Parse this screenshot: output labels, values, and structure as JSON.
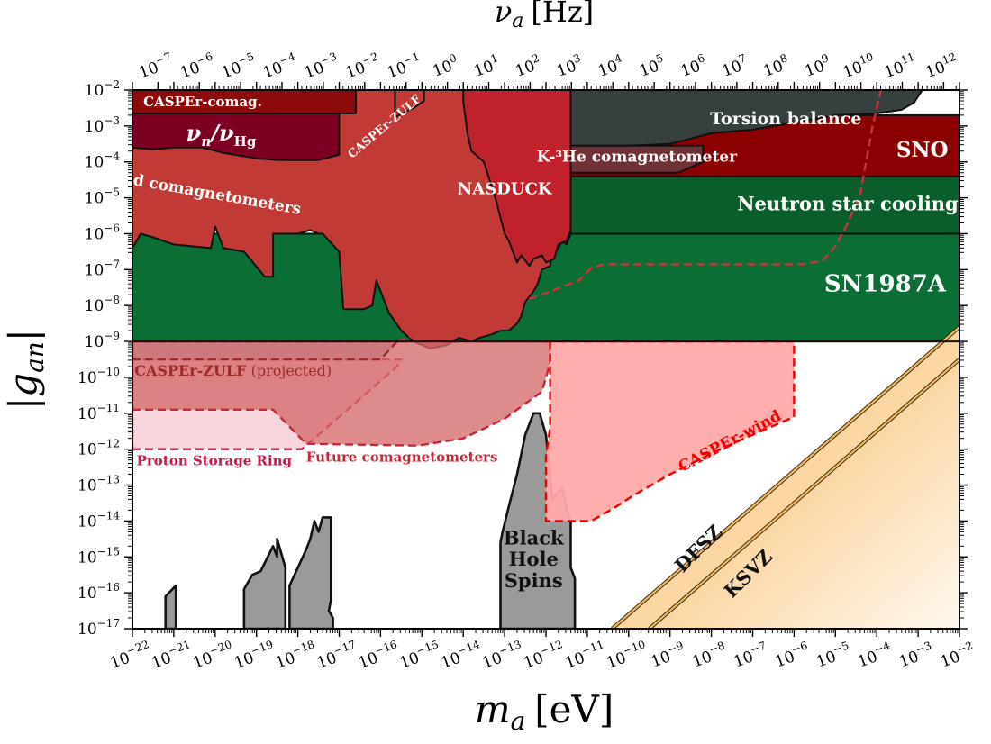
{
  "chart_data": {
    "type": "area",
    "title": "",
    "xlabel_base": "m",
    "xlabel_sub": "a",
    "xlabel_unit": "[eV]",
    "ylabel_base": "|g",
    "ylabel_sub": "an",
    "ylabel_end": "|",
    "top_xlabel_base": "ν",
    "top_xlabel_sub": "a",
    "top_xlabel_unit": "[Hz]",
    "x_scale": "log",
    "y_scale": "log",
    "xlim": [
      1e-22,
      0.01
    ],
    "ylim": [
      1e-17,
      0.01
    ],
    "hz_per_ev": 241800000000000.0,
    "x_tick_exponents": [
      -22,
      -21,
      -20,
      -19,
      -18,
      -17,
      -16,
      -15,
      -14,
      -13,
      -12,
      -11,
      -10,
      -9,
      -8,
      -7,
      -6,
      -5,
      -4,
      -3,
      -2
    ],
    "y_tick_exponents": [
      -17,
      -16,
      -15,
      -14,
      -13,
      -12,
      -11,
      -10,
      -9,
      -8,
      -7,
      -6,
      -5,
      -4,
      -3,
      -2
    ],
    "top_tick_exponents": [
      -7,
      -6,
      -5,
      -4,
      -3,
      -2,
      -1,
      0,
      1,
      2,
      3,
      4,
      5,
      6,
      7,
      8,
      9,
      10,
      11,
      12
    ],
    "colors": {
      "sn1987a": "#0b6e35",
      "neutron_star": "#0a5e2c",
      "sno": "#8b0000",
      "torsion": "#36403f",
      "khe": "#6e3236",
      "nasduck": "#c1212b",
      "old_comag": "#c13a36",
      "nu_hg": "#7d0022",
      "caspher_comag": "#8e0b0b",
      "caspher_zulf_exp": "#8a1e2e",
      "bhs": "#9a9a9a",
      "caspher_wind": "#ffaaaa",
      "proton_ring": "#f6c9d3",
      "axion_band": "#fbcf8e"
    },
    "regions": [
      {
        "name": "SN1987A",
        "label": "SN1987A",
        "kind": "constraint",
        "points": [
          [
            -22,
            -9
          ],
          [
            -2,
            -9
          ],
          [
            -2,
            -6
          ],
          [
            -22,
            -6
          ]
        ]
      },
      {
        "name": "Neutron star cooling",
        "label": "Neutron star cooling",
        "kind": "constraint",
        "points": [
          [
            -11.4,
            -6
          ],
          [
            -2,
            -6
          ],
          [
            -2,
            -4.4
          ],
          [
            -11.4,
            -4.4
          ]
        ]
      },
      {
        "name": "SNO",
        "label": "SNO",
        "kind": "constraint",
        "points": [
          [
            -11.4,
            -4.4
          ],
          [
            -2,
            -4.4
          ],
          [
            -2,
            -2.7
          ],
          [
            -11.4,
            -2.7
          ]
        ]
      },
      {
        "name": "Torsion balance",
        "label": "Torsion balance",
        "kind": "constraint",
        "points": [
          [
            -11.4,
            -2
          ],
          [
            -2.9,
            -2
          ],
          [
            -3.1,
            -2.35
          ],
          [
            -3.4,
            -2.55
          ],
          [
            -4,
            -2.65
          ],
          [
            -5,
            -2.7
          ],
          [
            -6,
            -2.9
          ],
          [
            -7,
            -3.1
          ],
          [
            -8,
            -3.2
          ],
          [
            -9,
            -3.5
          ],
          [
            -10,
            -3.55
          ],
          [
            -11.4,
            -3.55
          ]
        ]
      },
      {
        "name": "K-3He comagnetometer",
        "label": "K-³He comagnetometer",
        "kind": "constraint",
        "points": [
          [
            -11.4,
            -3.55
          ],
          [
            -8.2,
            -3.55
          ],
          [
            -8.2,
            -4.0
          ],
          [
            -8.8,
            -4.3
          ],
          [
            -11.4,
            -4.3
          ]
        ]
      },
      {
        "name": "Old comagnetometers",
        "label": "Old comagnetometers",
        "kind": "constraint",
        "points": [
          [
            -22,
            -2
          ],
          [
            -11.4,
            -2
          ],
          [
            -11.4,
            -6.0
          ],
          [
            -11.5,
            -6.3
          ],
          [
            -11.6,
            -6.2
          ],
          [
            -11.7,
            -6.4
          ],
          [
            -11.8,
            -6.3
          ],
          [
            -11.9,
            -6.9
          ],
          [
            -12.1,
            -7.0
          ],
          [
            -12.2,
            -7.4
          ],
          [
            -12.3,
            -7.6
          ],
          [
            -12.5,
            -7.9
          ],
          [
            -12.6,
            -8.3
          ],
          [
            -12.7,
            -8.5
          ],
          [
            -12.9,
            -8.7
          ],
          [
            -13.1,
            -8.7
          ],
          [
            -13.3,
            -8.8
          ],
          [
            -13.6,
            -8.9
          ],
          [
            -13.8,
            -9.0
          ],
          [
            -14.1,
            -8.9
          ],
          [
            -14.4,
            -9.1
          ],
          [
            -14.8,
            -9.2
          ],
          [
            -15.2,
            -9.0
          ],
          [
            -15.5,
            -8.7
          ],
          [
            -15.8,
            -8.2
          ],
          [
            -16.0,
            -7.6
          ],
          [
            -16.1,
            -7.3
          ],
          [
            -16.2,
            -8.0
          ],
          [
            -16.4,
            -8.1
          ],
          [
            -16.9,
            -8.1
          ],
          [
            -17.0,
            -6.5
          ],
          [
            -17.4,
            -6.0
          ],
          [
            -17.5,
            -6.0
          ],
          [
            -17.7,
            -5.9
          ],
          [
            -18.0,
            -6.0
          ],
          [
            -18.6,
            -6.0
          ],
          [
            -18.6,
            -7.2
          ],
          [
            -18.8,
            -7.2
          ],
          [
            -19.3,
            -6.5
          ],
          [
            -19.8,
            -6.4
          ],
          [
            -20.0,
            -5.8
          ],
          [
            -20.1,
            -6.4
          ],
          [
            -21.0,
            -6.3
          ],
          [
            -21.5,
            -6.1
          ],
          [
            -21.8,
            -6.0
          ],
          [
            -22,
            -6.4
          ]
        ]
      },
      {
        "name": "nu_n/nu_Hg",
        "label": "",
        "kind": "constraint",
        "points": [
          [
            -22,
            -2.55
          ],
          [
            -17.0,
            -2.55
          ],
          [
            -17.0,
            -3.8
          ],
          [
            -17.5,
            -3.95
          ],
          [
            -18.5,
            -3.95
          ],
          [
            -19.0,
            -3.9
          ],
          [
            -19.8,
            -3.75
          ],
          [
            -20.3,
            -3.6
          ],
          [
            -21.0,
            -3.6
          ],
          [
            -21.5,
            -3.65
          ],
          [
            -22,
            -3.6
          ]
        ]
      },
      {
        "name": "CASPEr-comag.",
        "label": "CASPEr-comag.",
        "kind": "constraint",
        "points": [
          [
            -22,
            -2
          ],
          [
            -16.6,
            -2
          ],
          [
            -16.6,
            -2.65
          ],
          [
            -22,
            -2.65
          ]
        ]
      },
      {
        "name": "CASPEr-ZULF exp",
        "label": "CASPEr-ZULF",
        "kind": "constraint",
        "points": [
          [
            -15.65,
            -2.0
          ],
          [
            -14.95,
            -2.0
          ],
          [
            -14.95,
            -2.3
          ],
          [
            -15.2,
            -2.5
          ],
          [
            -15.65,
            -2.75
          ]
        ]
      },
      {
        "name": "NASDUCK",
        "label": "NASDUCK",
        "kind": "constraint",
        "points": [
          [
            -14.0,
            -2.0
          ],
          [
            -11.4,
            -2.0
          ],
          [
            -11.4,
            -5.9
          ],
          [
            -11.5,
            -6.2
          ],
          [
            -11.7,
            -6.3
          ],
          [
            -11.8,
            -6.7
          ],
          [
            -12.0,
            -6.8
          ],
          [
            -12.1,
            -6.6
          ],
          [
            -12.3,
            -6.7
          ],
          [
            -12.4,
            -6.9
          ],
          [
            -12.6,
            -6.6
          ],
          [
            -12.7,
            -6.8
          ],
          [
            -12.8,
            -6.5
          ],
          [
            -12.9,
            -6.2
          ],
          [
            -13.0,
            -6.0
          ],
          [
            -13.2,
            -5.1
          ],
          [
            -13.5,
            -4.0
          ],
          [
            -13.8,
            -3.7
          ],
          [
            -13.9,
            -3.2
          ],
          [
            -14.0,
            -2.3
          ]
        ]
      },
      {
        "name": "Black Hole Spins",
        "label": "Black Hole Spins",
        "kind": "bhs",
        "points": [
          [
            -13.1,
            -17
          ],
          [
            -13.1,
            -14.6
          ],
          [
            -13.05,
            -14.3
          ],
          [
            -12.9,
            -13.6
          ],
          [
            -12.7,
            -12.7
          ],
          [
            -12.5,
            -11.6
          ],
          [
            -12.3,
            -11.0
          ],
          [
            -12.15,
            -11.0
          ],
          [
            -12.0,
            -11.6
          ],
          [
            -11.9,
            -12.7
          ],
          [
            -11.85,
            -13.4
          ],
          [
            -11.7,
            -13.2
          ],
          [
            -11.6,
            -13.1
          ],
          [
            -11.5,
            -13.7
          ],
          [
            -11.4,
            -14.0
          ],
          [
            -11.4,
            -15.3
          ],
          [
            -11.3,
            -15.6
          ],
          [
            -11.3,
            -17
          ]
        ]
      },
      {
        "name": "BHS small 1",
        "label": "",
        "kind": "bhs",
        "points": [
          [
            -21.2,
            -17
          ],
          [
            -21.2,
            -16.1
          ],
          [
            -20.95,
            -15.8
          ],
          [
            -20.95,
            -17
          ]
        ]
      },
      {
        "name": "BHS small 2",
        "label": "",
        "kind": "bhs",
        "points": [
          [
            -19.3,
            -17
          ],
          [
            -19.3,
            -15.9
          ],
          [
            -19.1,
            -15.5
          ],
          [
            -18.9,
            -15.4
          ],
          [
            -18.6,
            -14.7
          ],
          [
            -18.5,
            -15.0
          ],
          [
            -18.5,
            -14.5
          ],
          [
            -18.3,
            -15.3
          ],
          [
            -18.3,
            -17
          ]
        ]
      },
      {
        "name": "BHS small 3",
        "label": "",
        "kind": "bhs",
        "points": [
          [
            -18.2,
            -17
          ],
          [
            -18.2,
            -15.8
          ],
          [
            -18.0,
            -15.3
          ],
          [
            -17.8,
            -14.8
          ],
          [
            -17.7,
            -14.5
          ],
          [
            -17.6,
            -14.0
          ],
          [
            -17.5,
            -14.3
          ],
          [
            -17.4,
            -13.9
          ],
          [
            -17.2,
            -13.9
          ],
          [
            -17.2,
            -16.2
          ],
          [
            -17.25,
            -16.5
          ],
          [
            -17.15,
            -16.7
          ],
          [
            -17.15,
            -17
          ]
        ]
      }
    ],
    "projections": [
      {
        "name": "Proton Storage Ring",
        "label": "Proton Storage Ring",
        "fill": "#f6c9d3",
        "stroke": "#c91a49",
        "points": [
          [
            -22,
            -12
          ],
          [
            -17.9,
            -12
          ],
          [
            -17.6,
            -11.7
          ],
          [
            -17.3,
            -11.4
          ],
          [
            -17.0,
            -11.1
          ],
          [
            -16.1,
            -10.2
          ],
          [
            -15.6,
            -9.7
          ],
          [
            -15.5,
            -9.5
          ],
          [
            -22,
            -9.5
          ]
        ]
      },
      {
        "name": "Future comagnetometers",
        "label": "Future comagnetometers",
        "fill": "#d46a6a",
        "stroke": "#c6283a",
        "points": [
          [
            -22,
            -10.9
          ],
          [
            -18.6,
            -10.9
          ],
          [
            -17.8,
            -11.85
          ],
          [
            -15.1,
            -11.9
          ],
          [
            -14.0,
            -11.7
          ],
          [
            -13.0,
            -11.15
          ],
          [
            -12.1,
            -10.4
          ],
          [
            -11.9,
            -9.6
          ],
          [
            -11.9,
            -9.0
          ],
          [
            -22,
            -9.0
          ]
        ]
      },
      {
        "name": "CASPEr-ZULF (projected)",
        "label": "CASPEr-ZULF",
        "label_suffix": "(projected)",
        "fill": "#c8757a",
        "stroke": "#9e2929",
        "points": [
          [
            -22,
            -9.5
          ],
          [
            -16.0,
            -9.5
          ],
          [
            -15.6,
            -9.0
          ],
          [
            -22,
            -9.0
          ]
        ]
      },
      {
        "name": "CASPEr-wind",
        "label": "CASPEr-wind",
        "fill": "#ffaaaa",
        "stroke": "#f00000",
        "points": [
          [
            -12.0,
            -9.0
          ],
          [
            -6.0,
            -9.0
          ],
          [
            -6.0,
            -11.1
          ],
          [
            -7.6,
            -11.9
          ],
          [
            -9.0,
            -12.7
          ],
          [
            -9.9,
            -13.3
          ],
          [
            -10.3,
            -13.6
          ],
          [
            -10.9,
            -14.0
          ],
          [
            -12.0,
            -14.0
          ],
          [
            -12.0,
            -12.2
          ],
          [
            -11.9,
            -11.4
          ],
          [
            -11.9,
            -9.0
          ]
        ]
      }
    ],
    "future_line": {
      "name": "Future comagnetometers high-mass",
      "stroke": "#c9353b",
      "points": [
        [
          -15.6,
          -9.0
        ],
        [
          -15.0,
          -8.75
        ],
        [
          -14.0,
          -8.4
        ],
        [
          -13.0,
          -8.05
        ],
        [
          -12.0,
          -7.65
        ],
        [
          -11.2,
          -7.3
        ],
        [
          -10.9,
          -6.95
        ],
        [
          -10.6,
          -6.85
        ],
        [
          -9.5,
          -6.85
        ],
        [
          -8.5,
          -6.85
        ],
        [
          -6.6,
          -6.85
        ],
        [
          -5.8,
          -6.85
        ],
        [
          -5.3,
          -6.75
        ],
        [
          -5.0,
          -6.35
        ],
        [
          -4.7,
          -5.7
        ],
        [
          -4.4,
          -4.9
        ],
        [
          -4.1,
          -3.0
        ],
        [
          -3.9,
          -2.0
        ]
      ]
    },
    "axion_bands": [
      {
        "name": "DFSZ",
        "label": "DFSZ",
        "ref_mass_exp": -10.4,
        "ref_coupling_exp": -17.0,
        "slope": 1.0
      },
      {
        "name": "KSVZ",
        "label": "KSVZ",
        "ref_mass_exp": -9.5,
        "ref_coupling_exp": -17.0,
        "slope": 1.0
      }
    ],
    "annotations": [
      {
        "text": "ν",
        "sub": "n",
        "slash": "/ν",
        "sub2": "Hg",
        "role": "label for nu_n/nu_Hg region"
      }
    ]
  }
}
